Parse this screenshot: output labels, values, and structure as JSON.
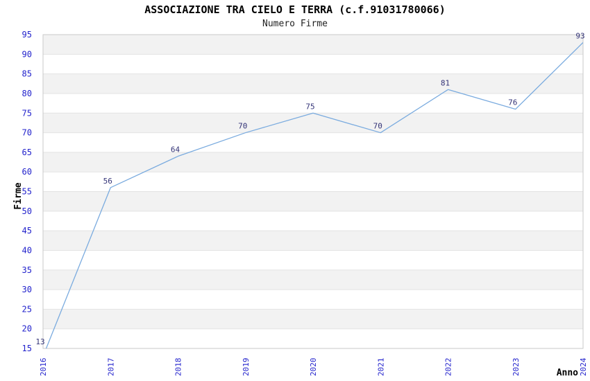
{
  "chart_data": {
    "type": "line",
    "title": "ASSOCIAZIONE TRA CIELO E TERRA (c.f.91031780066)",
    "subtitle": "Numero Firme",
    "xlabel": "Anno",
    "ylabel": "Firme",
    "x": [
      "2016",
      "2017",
      "2018",
      "2019",
      "2020",
      "2021",
      "2022",
      "2023",
      "2024"
    ],
    "values": [
      13,
      56,
      64,
      70,
      75,
      70,
      81,
      76,
      93
    ],
    "point_labels": [
      "13",
      "56",
      "64",
      "70",
      "75",
      "70",
      "81",
      "76",
      "93"
    ],
    "ylim": [
      15,
      95
    ],
    "yticks": [
      15,
      20,
      25,
      30,
      35,
      40,
      45,
      50,
      55,
      60,
      65,
      70,
      75,
      80,
      85,
      90,
      95
    ],
    "grid": "horizontal-bands-alternating",
    "legend": "none",
    "colors": {
      "line": "#7aabdf",
      "tick_label": "#2222cc",
      "point_label": "#333377",
      "band_fill": "#f2f2f2",
      "gridline": "#e3e3e3",
      "plot_border": "#c9c9c9",
      "title": "#000000",
      "subtitle": "#222222",
      "axis_label": "#000000"
    }
  }
}
